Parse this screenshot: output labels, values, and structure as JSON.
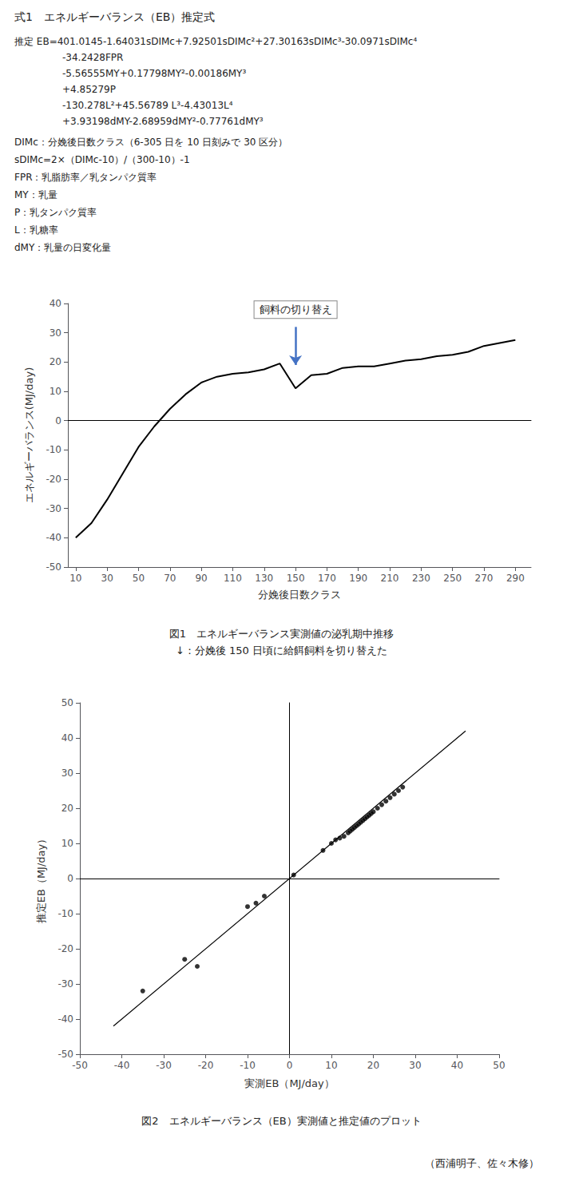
{
  "title": "式1　エネルギーバランス（EB）推定式",
  "annotations": [
    "推定 EB=401.0145-1.64031sDIMc+7.92501sDIMc²+27.30163sDIMc³-30.0971sDIMc⁴",
    "　　　　　-34.2428FPR",
    "　　　　　-5.56555MY+0.17798MY²-0.00186MY³",
    "　　　　　+4.85279P",
    "　　　　　-130.278L²+45.56789 L³-4.43013L⁴",
    "　　　　　+3.93198dMY-2.68959dMY²-0.77761dMY³",
    "DIMc：分娩後日数クラス（6-305 日を 10 日刻みで 30 区分）",
    "sDIMc=2×（DIMc-10）/（300-10）-1",
    "FPR：乳脂肪率／乳タンパク質率",
    "MY：乳量",
    "P：乳タンパク質率",
    "L：乳糖率",
    "dMY：乳量の日変化量"
  ],
  "footer": "（西浦明子、佐々木修）",
  "chart_data": [
    {
      "type": "line",
      "title": "図1　エネルギーバランス実測値の泌乳期中推移",
      "subtitle": "↓：分娩後 150 日頃に給餌飼料を切り替えた",
      "xlabel": "分娩後日数クラス",
      "ylabel": "エネルギーバランス(MJ/day)",
      "x": [
        10,
        20,
        30,
        40,
        50,
        60,
        70,
        80,
        90,
        100,
        110,
        120,
        130,
        140,
        150,
        160,
        170,
        180,
        190,
        200,
        210,
        220,
        230,
        240,
        250,
        260,
        270,
        280,
        290
      ],
      "values": [
        -40,
        -35,
        -27,
        -18,
        -9,
        -2,
        4,
        9,
        13,
        15,
        16,
        16.5,
        17.5,
        19.5,
        11,
        15.5,
        16,
        18,
        18.5,
        18.5,
        19.5,
        20.5,
        21,
        22,
        22.5,
        23.5,
        25.5,
        26.5,
        27.5
      ],
      "color": "#000000",
      "xlim": [
        5,
        300
      ],
      "ylim": [
        -50,
        40
      ],
      "xticks": [
        10,
        30,
        50,
        70,
        90,
        110,
        130,
        150,
        170,
        190,
        210,
        230,
        250,
        270,
        290
      ],
      "yticks": [
        -50,
        -40,
        -30,
        -20,
        -10,
        0,
        10,
        20,
        30,
        40
      ],
      "grid": false,
      "annotations": [
        {
          "text": "飼料の切り替え",
          "x": 150,
          "y": 34.5,
          "arrow_from": [
            150,
            32
          ],
          "arrow_to": [
            150,
            19
          ],
          "color": "#4472C4"
        }
      ]
    },
    {
      "type": "scatter",
      "title": "図2　エネルギーバランス（EB）実測値と推定値のプロット",
      "xlabel": "実測EB（MJ/day）",
      "ylabel": "推定EB（MJ/day）",
      "series": [
        {
          "type": "scatter",
          "color": "#000000",
          "x": [
            -35,
            -25,
            -22,
            -10,
            -8,
            -6,
            1,
            8,
            10,
            11,
            12,
            13,
            14,
            14.5,
            15,
            15.5,
            16,
            16.5,
            17,
            17.5,
            18,
            18.5,
            19,
            19.5,
            20,
            21,
            22,
            23,
            24,
            25,
            26,
            27
          ],
          "values": [
            -32,
            -23,
            -25,
            -8,
            -7,
            -5,
            1,
            8,
            10,
            11,
            11.5,
            12,
            13,
            13.5,
            14,
            14.5,
            15,
            15.5,
            16,
            16.5,
            17,
            17.5,
            18,
            18.5,
            19,
            20,
            21,
            22,
            23,
            24,
            25,
            26
          ]
        },
        {
          "type": "line",
          "color": "#000000",
          "x": [
            -42,
            42
          ],
          "values": [
            -42,
            42
          ]
        }
      ],
      "xlim": [
        -50,
        50
      ],
      "ylim": [
        -50,
        50
      ],
      "xticks": [
        -50,
        -40,
        -30,
        -20,
        -10,
        0,
        10,
        20,
        30,
        40,
        50
      ],
      "yticks": [
        -50,
        -40,
        -30,
        -20,
        -10,
        0,
        10,
        20,
        30,
        40,
        50
      ],
      "grid": false
    }
  ]
}
